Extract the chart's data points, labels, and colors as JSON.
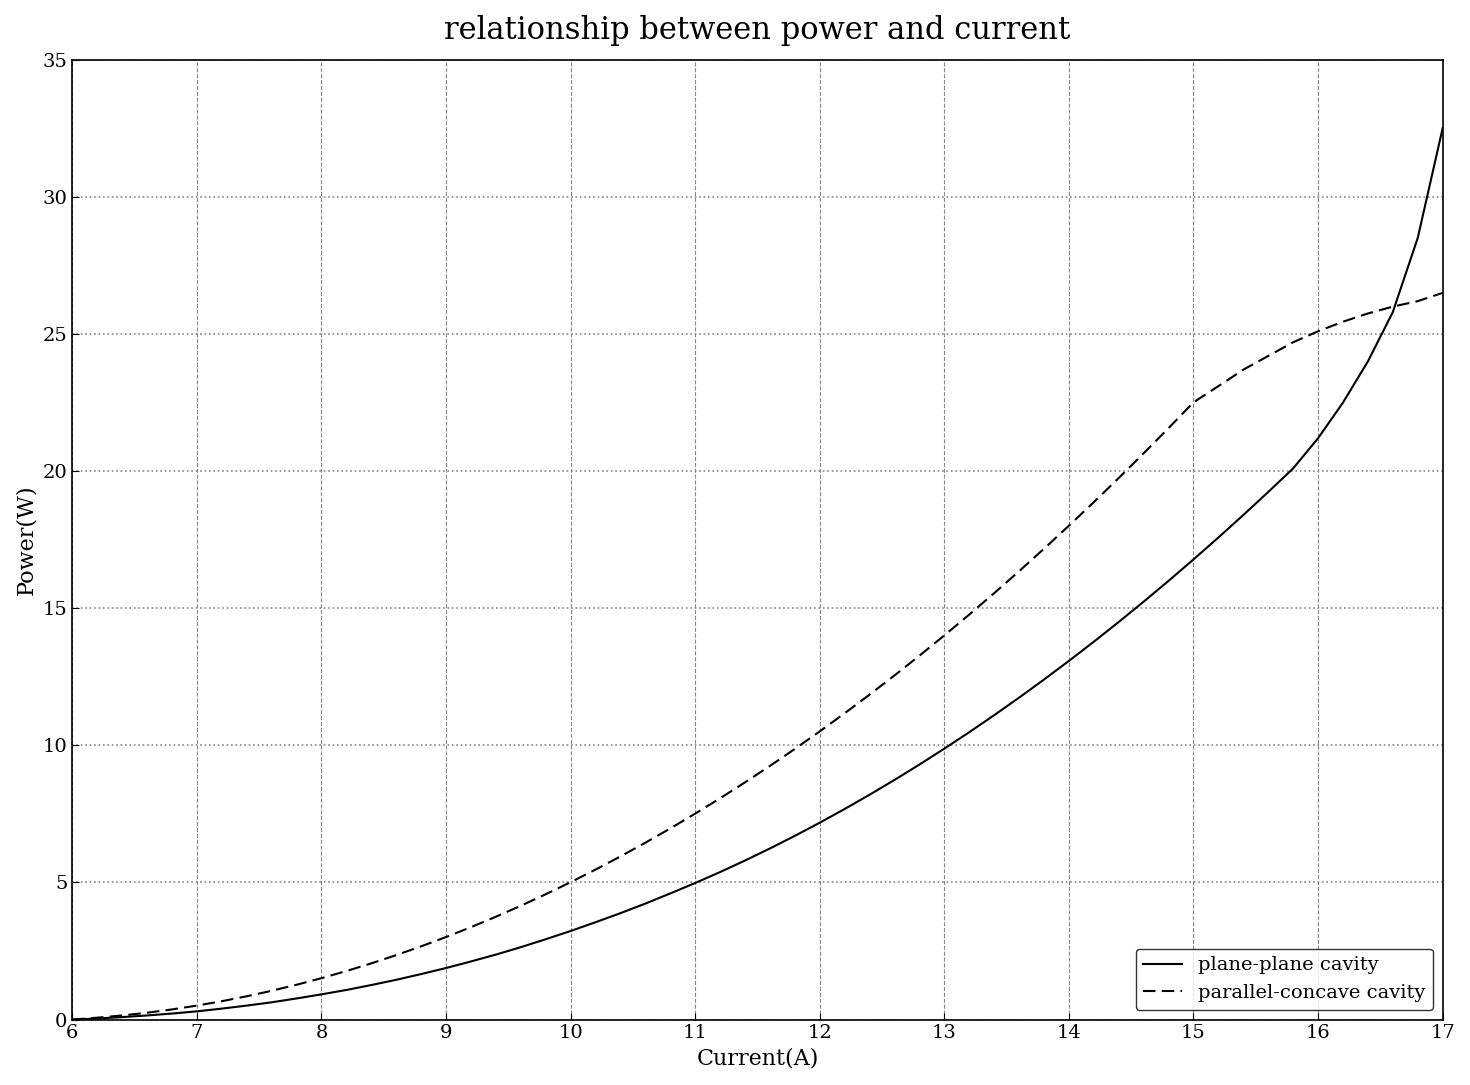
{
  "title": "relationship between power and current",
  "xlabel": "Current(A)",
  "ylabel": "Power(W)",
  "xlim": [
    6,
    17
  ],
  "ylim": [
    0,
    35
  ],
  "xticks": [
    6,
    7,
    8,
    9,
    10,
    11,
    12,
    13,
    14,
    15,
    16,
    17
  ],
  "yticks": [
    0,
    5,
    10,
    15,
    20,
    25,
    30,
    35
  ],
  "legend": [
    {
      "label": "plane-plane cavity",
      "linestyle": "solid"
    },
    {
      "label": "parallel-concave cavity",
      "linestyle": "dashed"
    }
  ],
  "solid_x": [
    6.0,
    6.2,
    6.4,
    6.6,
    6.8,
    7.0,
    7.2,
    7.4,
    7.6,
    7.8,
    8.0,
    8.2,
    8.4,
    8.6,
    8.8,
    9.0,
    9.2,
    9.4,
    9.6,
    9.8,
    10.0,
    10.2,
    10.4,
    10.6,
    10.8,
    11.0,
    11.2,
    11.4,
    11.6,
    11.8,
    12.0,
    12.2,
    12.4,
    12.6,
    12.8,
    13.0,
    13.2,
    13.4,
    13.6,
    13.8,
    14.0,
    14.2,
    14.4,
    14.6,
    14.8,
    15.0,
    15.2,
    15.4,
    15.6,
    15.8,
    16.0,
    16.2,
    16.4,
    16.6,
    16.8,
    17.0
  ],
  "solid_y": [
    0.0,
    0.04,
    0.09,
    0.15,
    0.22,
    0.3,
    0.4,
    0.51,
    0.63,
    0.77,
    0.92,
    1.08,
    1.26,
    1.45,
    1.66,
    1.88,
    2.12,
    2.37,
    2.64,
    2.93,
    3.23,
    3.55,
    3.88,
    4.23,
    4.6,
    4.98,
    5.38,
    5.8,
    6.24,
    6.7,
    7.18,
    7.68,
    8.2,
    8.74,
    9.3,
    9.88,
    10.48,
    11.1,
    11.74,
    12.4,
    13.08,
    13.78,
    14.5,
    15.24,
    16.0,
    16.78,
    17.58,
    18.4,
    19.24,
    20.1,
    21.2,
    22.5,
    24.0,
    25.8,
    28.5,
    32.5
  ],
  "dashed_x": [
    6.0,
    6.2,
    6.4,
    6.6,
    6.8,
    7.0,
    7.2,
    7.4,
    7.6,
    7.8,
    8.0,
    8.2,
    8.4,
    8.6,
    8.8,
    9.0,
    9.2,
    9.4,
    9.6,
    9.8,
    10.0,
    10.2,
    10.4,
    10.6,
    10.8,
    11.0,
    11.2,
    11.4,
    11.6,
    11.8,
    12.0,
    12.2,
    12.4,
    12.6,
    12.8,
    13.0,
    13.2,
    13.4,
    13.6,
    13.8,
    14.0,
    14.2,
    14.4,
    14.6,
    14.8,
    15.0,
    15.2,
    15.4,
    15.6,
    15.8,
    16.0,
    16.2,
    16.4,
    16.6,
    16.8,
    17.0
  ],
  "dashed_y": [
    0.0,
    0.07,
    0.15,
    0.25,
    0.37,
    0.51,
    0.67,
    0.85,
    1.05,
    1.27,
    1.51,
    1.77,
    2.05,
    2.35,
    2.67,
    3.01,
    3.37,
    3.75,
    4.15,
    4.57,
    5.01,
    5.47,
    5.95,
    6.45,
    6.97,
    7.51,
    8.07,
    8.65,
    9.25,
    9.87,
    10.51,
    11.17,
    11.85,
    12.55,
    13.27,
    14.01,
    14.77,
    15.55,
    16.35,
    17.17,
    18.01,
    18.87,
    19.75,
    20.65,
    21.57,
    22.51,
    23.1,
    23.7,
    24.2,
    24.7,
    25.1,
    25.45,
    25.75,
    26.0,
    26.2,
    26.5
  ],
  "line_color": "#000000",
  "background_color": "#ffffff",
  "title_fontsize": 22,
  "label_fontsize": 16,
  "tick_fontsize": 14,
  "legend_fontsize": 14,
  "line_width": 1.5
}
